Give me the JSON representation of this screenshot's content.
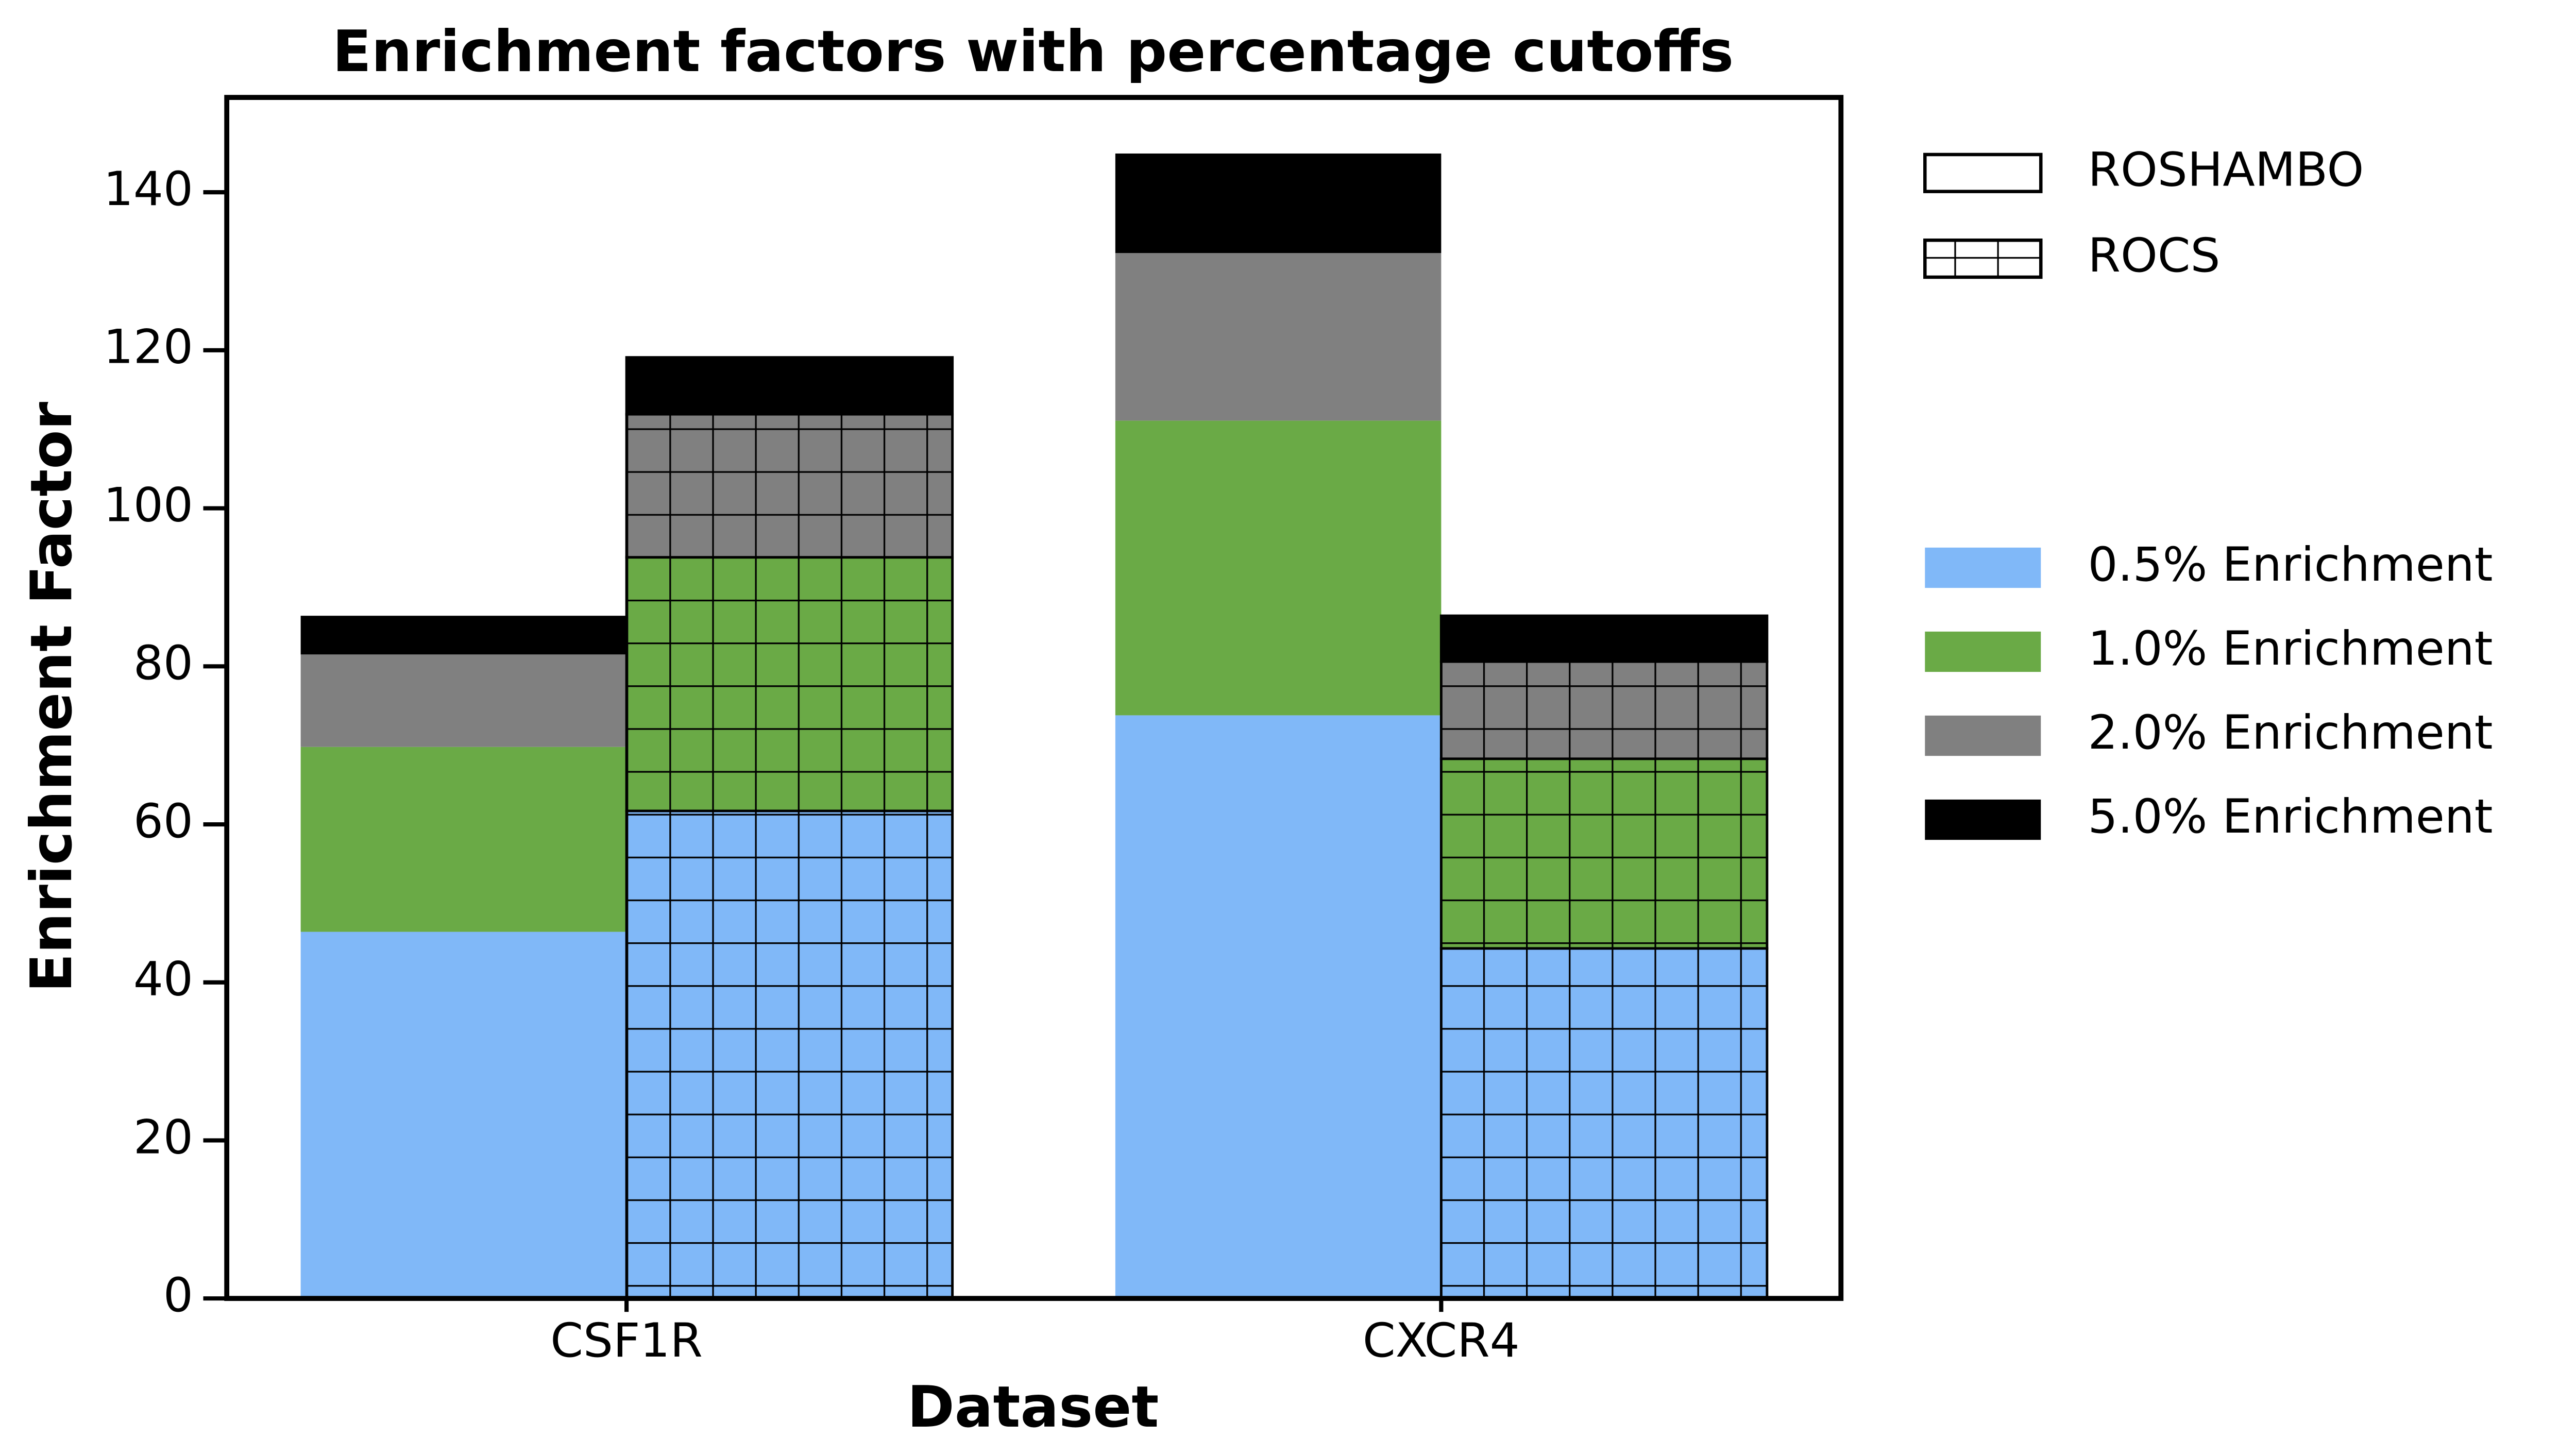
{
  "chart_data": {
    "type": "stacked_grouped_bar",
    "title": "Enrichment factors with percentage cutoffs",
    "xlabel": "Dataset",
    "ylabel": "Enrichment Factor",
    "categories": [
      "CSF1R",
      "CXCR4"
    ],
    "groups": [
      {
        "name": "ROSHAMBO",
        "hatch": "none"
      },
      {
        "name": "ROCS",
        "hatch": "grid"
      }
    ],
    "series": [
      {
        "name": "0.5% Enrichment",
        "color": "#80b8f8",
        "values": [
          [
            46.4,
            61.7
          ],
          [
            73.8,
            44.3
          ]
        ]
      },
      {
        "name": "1.0% Enrichment",
        "color": "#6aaa46",
        "values": [
          [
            23.4,
            32.1
          ],
          [
            37.3,
            24.0
          ]
        ]
      },
      {
        "name": "2.0% Enrichment",
        "color": "#808080",
        "values": [
          [
            11.7,
            18.1
          ],
          [
            21.2,
            12.3
          ]
        ]
      },
      {
        "name": "5.0% Enrichment",
        "color": "#000000",
        "values": [
          [
            4.9,
            7.2
          ],
          [
            12.6,
            5.8
          ]
        ]
      }
    ],
    "ylim": [
      0,
      152
    ],
    "yticks": [
      0,
      20,
      40,
      60,
      80,
      100,
      120,
      140
    ]
  }
}
